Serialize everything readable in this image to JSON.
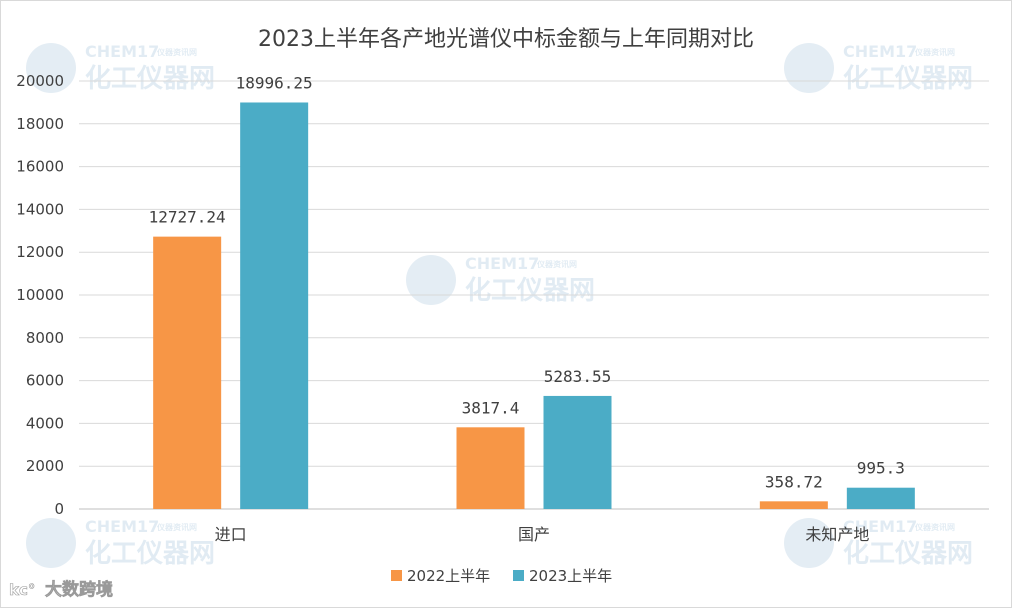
{
  "chart_data": {
    "type": "bar",
    "title": "2023上半年各产地光谱仪中标金额与上年同期对比",
    "categories": [
      "进口",
      "国产",
      "未知产地"
    ],
    "series": [
      {
        "name": "2022上半年",
        "color": "#f79646",
        "values": [
          12727.24,
          3817.4,
          358.72
        ],
        "labels": [
          "12727.24",
          "3817.4",
          "358.72"
        ]
      },
      {
        "name": "2023上半年",
        "color": "#4bacc6",
        "values": [
          18996.25,
          5283.55,
          995.3
        ],
        "labels": [
          "18996.25",
          "5283.55",
          "995.3"
        ]
      }
    ],
    "ylim": [
      0,
      20000
    ],
    "yticks": [
      0,
      2000,
      4000,
      6000,
      8000,
      10000,
      12000,
      14000,
      16000,
      18000,
      20000
    ],
    "grid": true,
    "legend_position": "bottom"
  },
  "watermark": {
    "brand": "CHEM17",
    "small": "仪器资讯网",
    "name": "化工仪器网",
    "color": "#1f6fa8"
  },
  "corner_logo": {
    "text": "大数跨境"
  }
}
